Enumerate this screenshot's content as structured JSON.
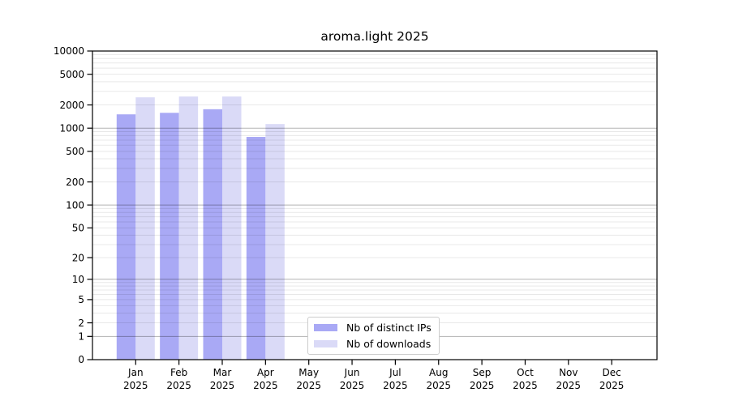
{
  "chart_data": {
    "type": "bar",
    "title": "aroma.light 2025",
    "categories": [
      "Jan 2025",
      "Feb 2025",
      "Mar 2025",
      "Apr 2025",
      "May 2025",
      "Jun 2025",
      "Jul 2025",
      "Aug 2025",
      "Sep 2025",
      "Oct 2025",
      "Nov 2025",
      "Dec 2025"
    ],
    "series": [
      {
        "name": "Nb of distinct IPs",
        "color": "#a9a9f5",
        "values": [
          1510,
          1580,
          1760,
          770,
          null,
          null,
          null,
          null,
          null,
          null,
          null,
          null
        ]
      },
      {
        "name": "Nb of downloads",
        "color": "#dadaf7",
        "values": [
          2510,
          2570,
          2570,
          1130,
          null,
          null,
          null,
          null,
          null,
          null,
          null,
          null
        ]
      }
    ],
    "yticks": [
      10000,
      5000,
      2000,
      1000,
      500,
      200,
      100,
      50,
      20,
      10,
      5,
      2,
      1,
      0
    ],
    "yscale": "log10(value+1)",
    "ylim": [
      0,
      10000
    ],
    "xlabel": "",
    "ylabel": "",
    "grid": "horizontal major and minor, drawn over bars",
    "legend_position": "lower center"
  }
}
